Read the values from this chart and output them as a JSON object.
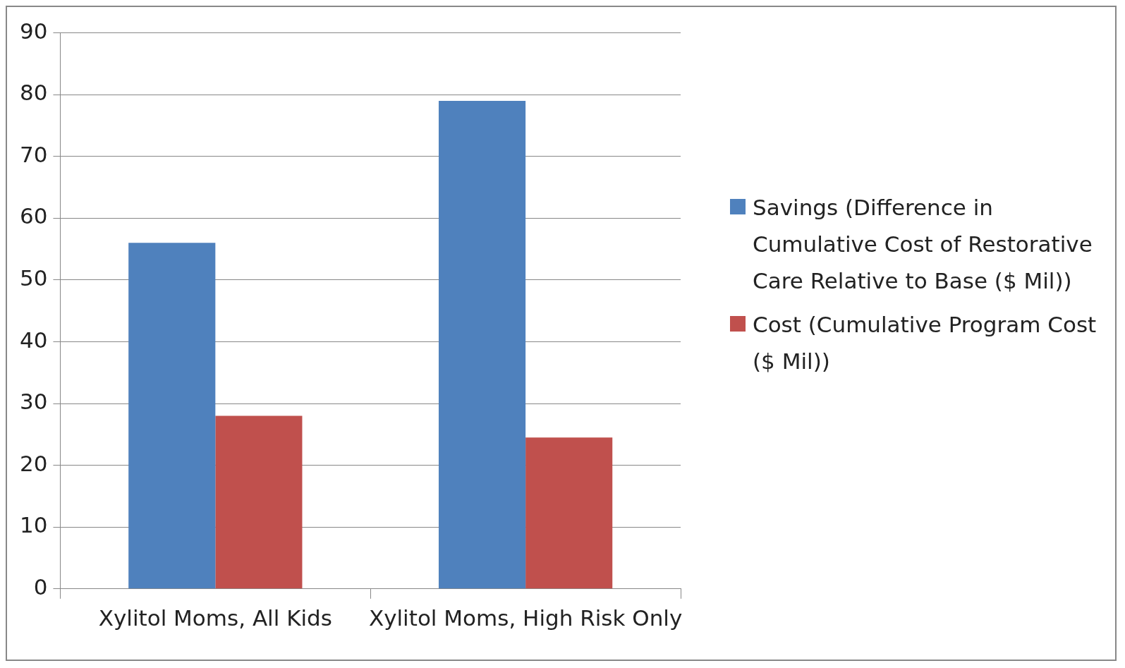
{
  "chart_data": {
    "type": "bar",
    "categories": [
      "Xylitol Moms, All Kids",
      "Xylitol Moms, High Risk Only"
    ],
    "series": [
      {
        "name": "Savings (Difference in Cumulative Cost of Restorative Care Relative to Base ($ Mil))",
        "color": "#4f81bd",
        "values": [
          56,
          79
        ]
      },
      {
        "name": "Cost (Cumulative Program Cost    ($ Mil))",
        "color": "#c0504d",
        "values": [
          28,
          24.5
        ]
      }
    ],
    "ylim": [
      0,
      90
    ],
    "yticks": [
      0,
      10,
      20,
      30,
      40,
      50,
      60,
      70,
      80,
      90
    ],
    "grid": "y",
    "legend": "right"
  }
}
